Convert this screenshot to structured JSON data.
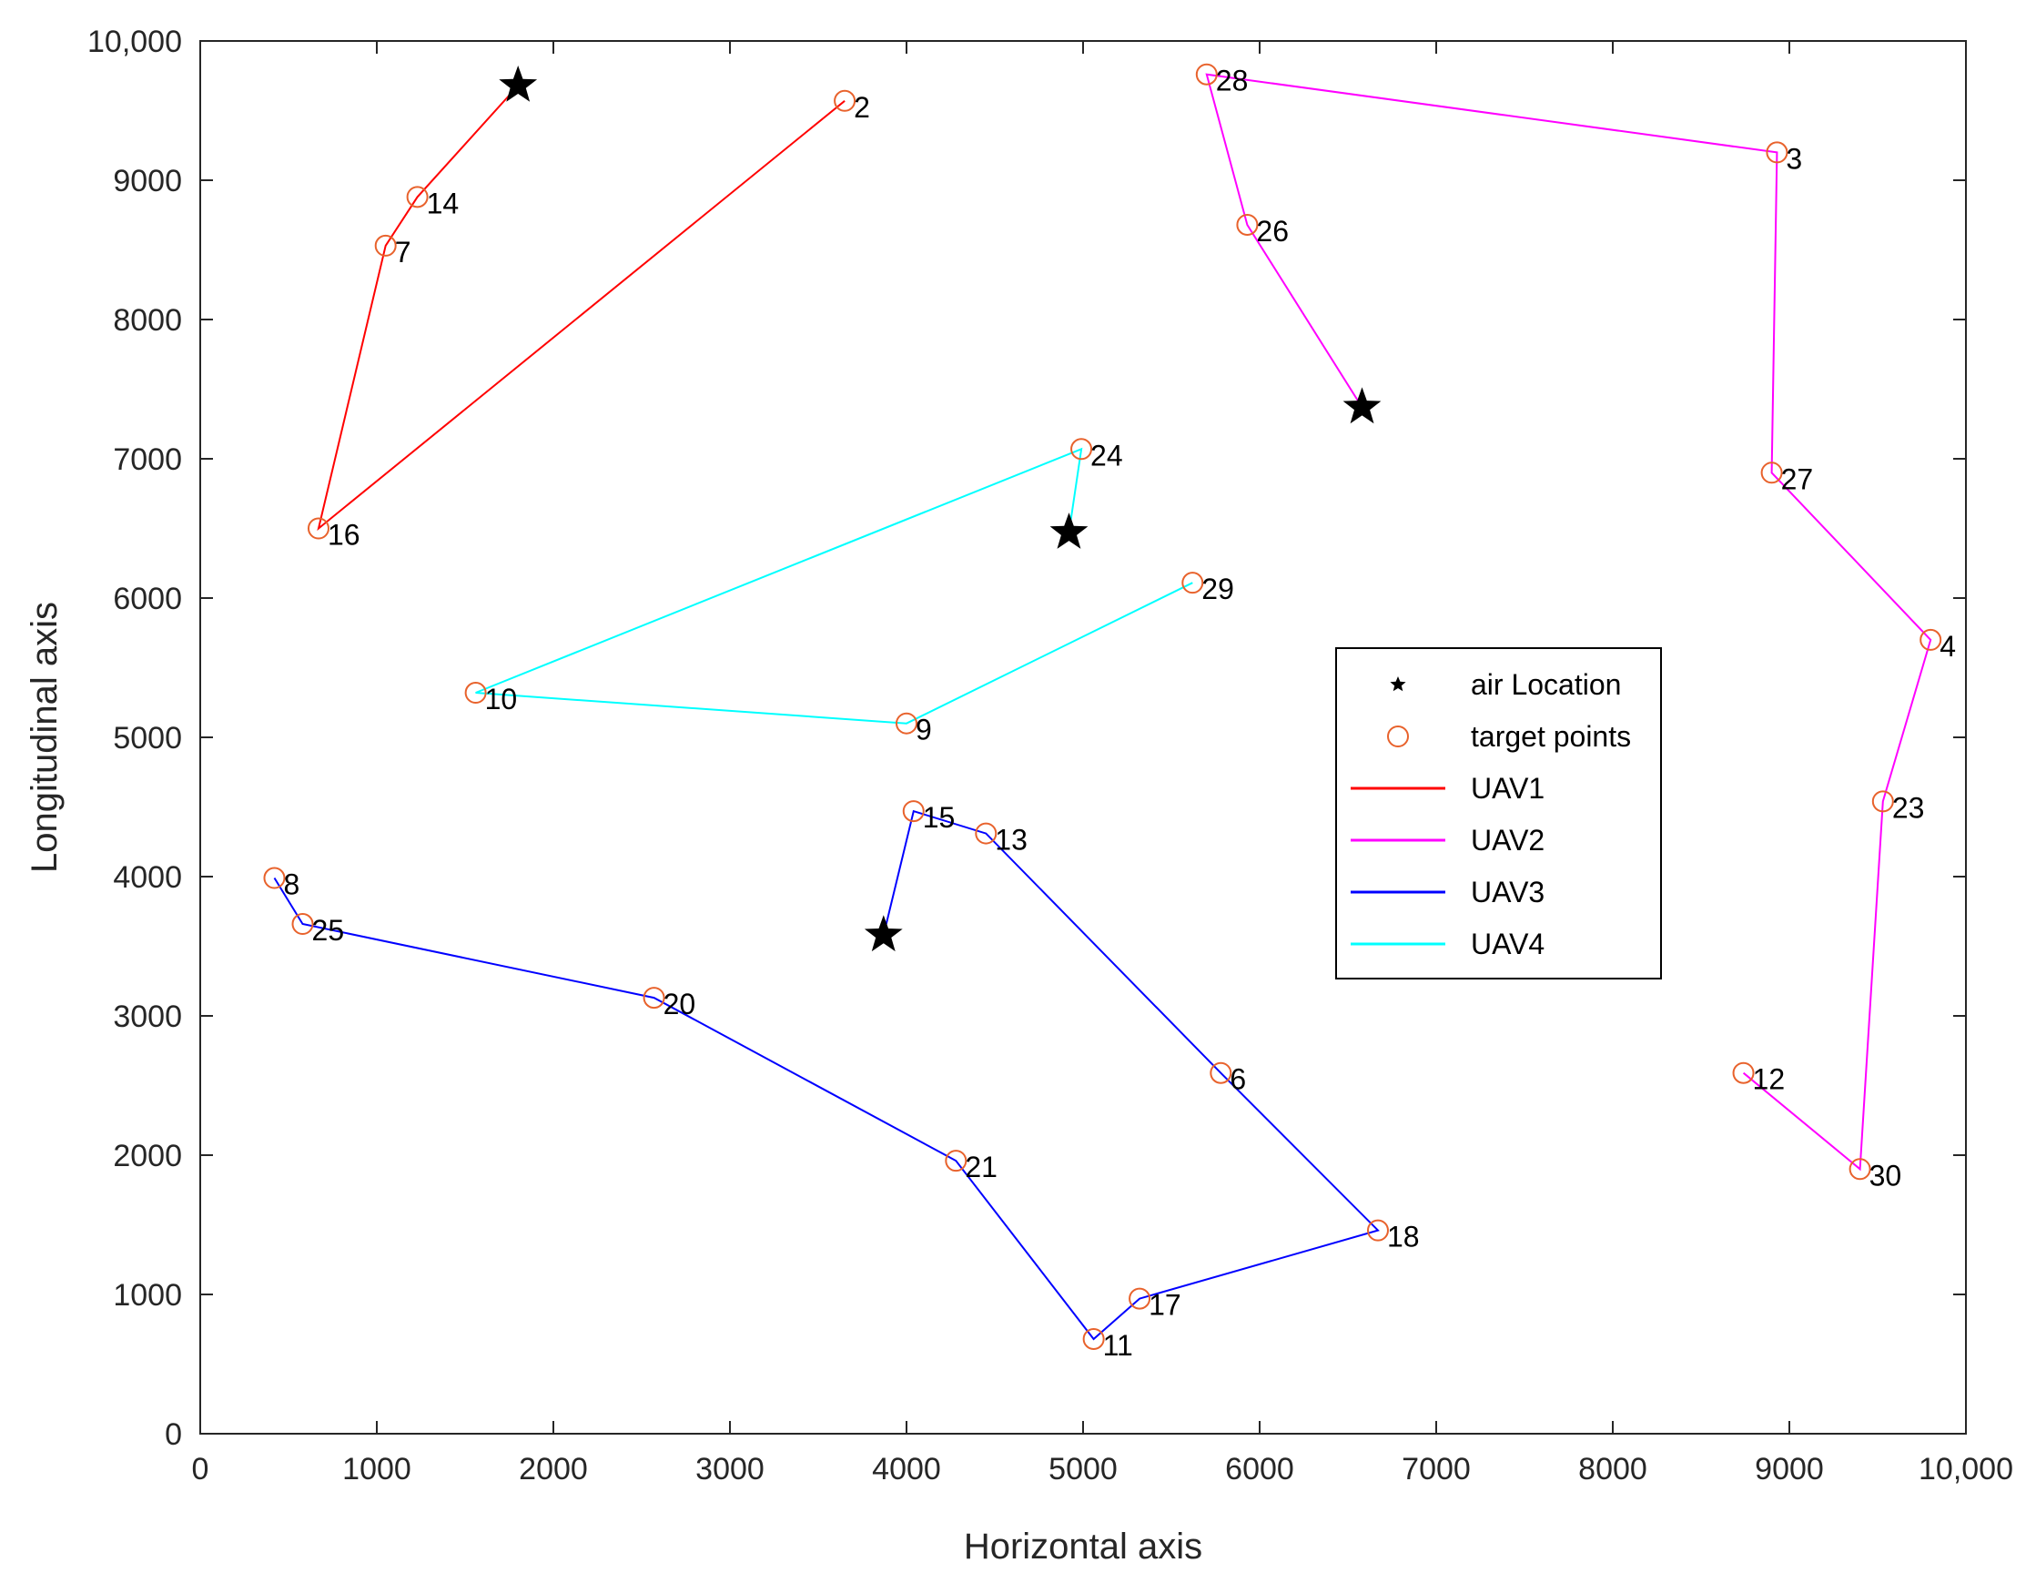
{
  "chart_data": {
    "type": "scatter",
    "xlabel": "Horizontal axis",
    "ylabel": "Longitudinal axis",
    "xlim": [
      0,
      10000
    ],
    "ylim": [
      0,
      10000
    ],
    "xticks": [
      0,
      1000,
      2000,
      3000,
      4000,
      5000,
      6000,
      7000,
      8000,
      9000,
      10000
    ],
    "xtick_labels": [
      "0",
      "1000",
      "2000",
      "3000",
      "4000",
      "5000",
      "6000",
      "7000",
      "8000",
      "9000",
      "10,000"
    ],
    "yticks": [
      0,
      1000,
      2000,
      3000,
      4000,
      5000,
      6000,
      7000,
      8000,
      9000,
      10000
    ],
    "ytick_labels": [
      "0",
      "1000",
      "2000",
      "3000",
      "4000",
      "5000",
      "6000",
      "7000",
      "8000",
      "9000",
      "10,000"
    ],
    "grid": false,
    "legend_position": "center-right",
    "legend": [
      {
        "label": "air Location",
        "kind": "star",
        "color": "#000000"
      },
      {
        "label": "target points",
        "kind": "circle",
        "color": "#e8622c"
      },
      {
        "label": "UAV1",
        "kind": "line",
        "color": "#ff0000"
      },
      {
        "label": "UAV2",
        "kind": "line",
        "color": "#ff00ff"
      },
      {
        "label": "UAV3",
        "kind": "line",
        "color": "#0000ff"
      },
      {
        "label": "UAV4",
        "kind": "line",
        "color": "#00ffff"
      }
    ],
    "air_locations": [
      {
        "x": 1800,
        "y": 9680
      },
      {
        "x": 6580,
        "y": 7370
      },
      {
        "x": 4920,
        "y": 6470
      },
      {
        "x": 3870,
        "y": 3580
      }
    ],
    "target_points": [
      {
        "id": "2",
        "x": 3650,
        "y": 9570
      },
      {
        "id": "14",
        "x": 1230,
        "y": 8880
      },
      {
        "id": "7",
        "x": 1050,
        "y": 8530
      },
      {
        "id": "16",
        "x": 670,
        "y": 6500
      },
      {
        "id": "28",
        "x": 5700,
        "y": 9760
      },
      {
        "id": "3",
        "x": 8930,
        "y": 9200
      },
      {
        "id": "26",
        "x": 5930,
        "y": 8680
      },
      {
        "id": "27",
        "x": 8900,
        "y": 6900
      },
      {
        "id": "4",
        "x": 9800,
        "y": 5700
      },
      {
        "id": "23",
        "x": 9530,
        "y": 4540
      },
      {
        "id": "30",
        "x": 9400,
        "y": 1900
      },
      {
        "id": "12",
        "x": 8740,
        "y": 2590
      },
      {
        "id": "24",
        "x": 4990,
        "y": 7070
      },
      {
        "id": "29",
        "x": 5620,
        "y": 6110
      },
      {
        "id": "10",
        "x": 1560,
        "y": 5320
      },
      {
        "id": "9",
        "x": 4000,
        "y": 5100
      },
      {
        "id": "15",
        "x": 4040,
        "y": 4470
      },
      {
        "id": "13",
        "x": 4450,
        "y": 4310
      },
      {
        "id": "8",
        "x": 420,
        "y": 3990
      },
      {
        "id": "25",
        "x": 580,
        "y": 3660
      },
      {
        "id": "20",
        "x": 2570,
        "y": 3130
      },
      {
        "id": "6",
        "x": 5780,
        "y": 2590
      },
      {
        "id": "21",
        "x": 4280,
        "y": 1960
      },
      {
        "id": "18",
        "x": 6670,
        "y": 1460
      },
      {
        "id": "17",
        "x": 5320,
        "y": 970
      },
      {
        "id": "11",
        "x": 5060,
        "y": 680
      }
    ],
    "series": [
      {
        "name": "UAV1",
        "color": "#ff0000",
        "x": [
          1800,
          1230,
          1050,
          670,
          3650
        ],
        "y": [
          9680,
          8880,
          8530,
          6500,
          9570
        ]
      },
      {
        "name": "UAV2",
        "color": "#ff00ff",
        "x": [
          6580,
          5930,
          5700,
          8930,
          8900,
          9800,
          9530,
          9400,
          8740
        ],
        "y": [
          7370,
          8680,
          9760,
          9200,
          6900,
          5700,
          4540,
          1900,
          2590
        ]
      },
      {
        "name": "UAV3",
        "color": "#0000ff",
        "x": [
          3870,
          4040,
          4450,
          5780,
          6670,
          5320,
          5060,
          4280,
          2570,
          580,
          420
        ],
        "y": [
          3580,
          4470,
          4310,
          2590,
          1460,
          970,
          680,
          1960,
          3130,
          3660,
          3990
        ]
      },
      {
        "name": "UAV4",
        "color": "#00ffff",
        "x": [
          4920,
          4990,
          1560,
          4000,
          5620
        ],
        "y": [
          6470,
          7070,
          5320,
          5100,
          6110
        ]
      }
    ]
  }
}
